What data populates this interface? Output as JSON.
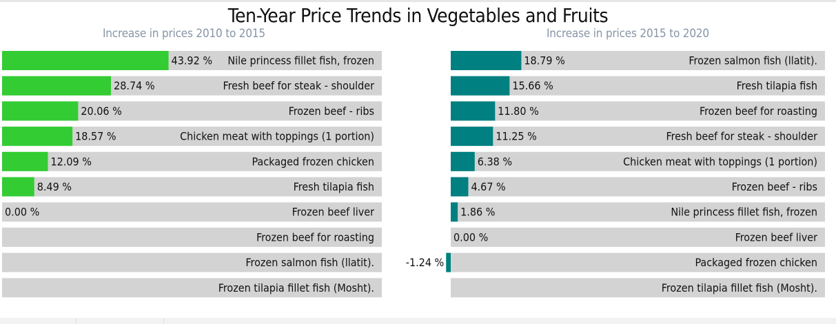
{
  "title": "Ten-Year Price Trends in Vegetables and Fruits",
  "colors": {
    "track": "#d3d3d3",
    "left_bar": "#33cc33",
    "right_bar": "#008080"
  },
  "chart_data": [
    {
      "type": "bar",
      "title": "Increase in prices 2010 to 2015",
      "categories": [
        "Nile princess fillet fish, frozen",
        "Fresh beef for steak - shoulder",
        "Frozen beef - ribs",
        "Chicken meat with toppings (1 portion)",
        "Packaged frozen chicken",
        "Fresh tilapia fish",
        "Frozen beef liver",
        "Frozen beef for roasting",
        "Frozen salmon fish (llatit).",
        "Frozen tilapia fillet fish (Mosht)."
      ],
      "values": [
        43.92,
        28.74,
        20.06,
        18.57,
        12.09,
        8.49,
        0.0,
        null,
        null,
        null
      ],
      "value_labels": [
        "43.92 %",
        "28.74 %",
        "20.06 %",
        "18.57 %",
        "12.09 %",
        "8.49 %",
        "0.00 %",
        "",
        "",
        ""
      ]
    },
    {
      "type": "bar",
      "title": "Increase in prices 2015 to 2020",
      "categories": [
        "Frozen salmon fish (llatit).",
        "Fresh tilapia fish",
        "Frozen beef for roasting",
        "Fresh beef for steak - shoulder",
        "Chicken meat with toppings (1 portion)",
        "Frozen beef - ribs",
        "Nile princess fillet fish, frozen",
        "Frozen beef liver",
        "Packaged frozen chicken",
        "Frozen tilapia fillet fish (Mosht)."
      ],
      "values": [
        18.79,
        15.66,
        11.8,
        11.25,
        6.38,
        4.67,
        1.86,
        0.0,
        -1.24,
        null
      ],
      "value_labels": [
        "18.79 %",
        "15.66 %",
        "11.80 %",
        "11.25 %",
        "6.38 %",
        "4.67 %",
        "1.86 %",
        "0.00 %",
        "-1.24 %",
        ""
      ]
    }
  ]
}
